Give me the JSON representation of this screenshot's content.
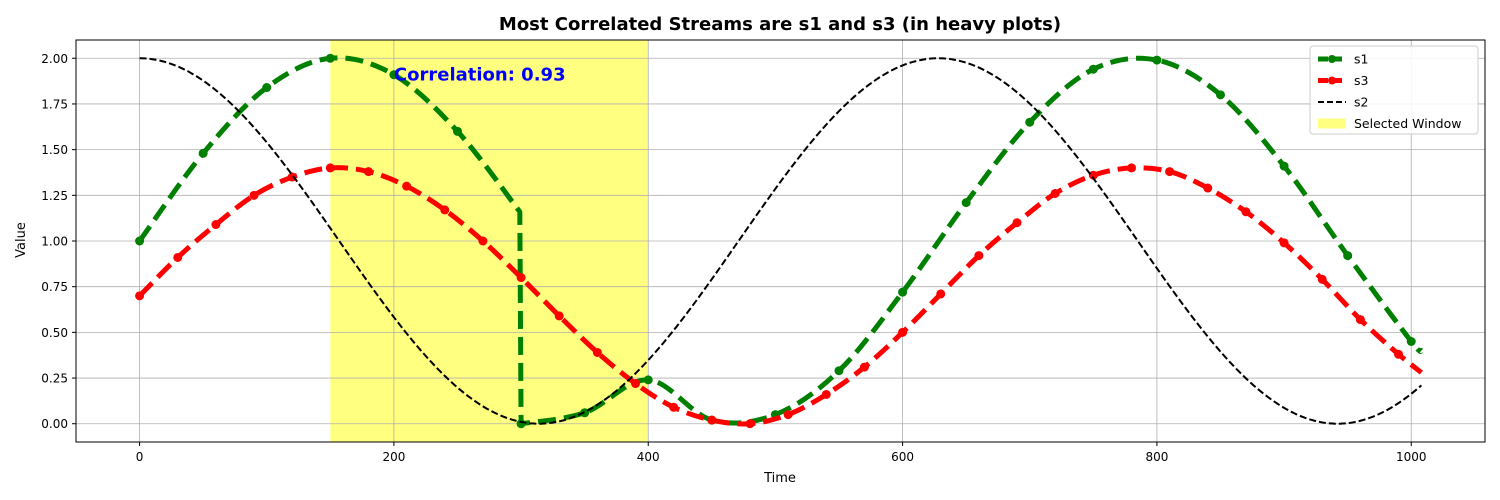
{
  "chart_data": {
    "type": "line",
    "title": "Most Correlated Streams are s1 and s3 (in heavy plots)",
    "xlabel": "Time",
    "ylabel": "Value",
    "xlim": [
      -50,
      1058
    ],
    "ylim": [
      -0.1,
      2.1
    ],
    "xticks": [
      0,
      200,
      400,
      600,
      800,
      1000
    ],
    "yticks": [
      0.0,
      0.25,
      0.5,
      0.75,
      1.0,
      1.25,
      1.5,
      1.75,
      2.0
    ],
    "ytick_labels": [
      "0.00",
      "0.25",
      "0.50",
      "0.75",
      "1.00",
      "1.25",
      "1.50",
      "1.75",
      "2.00"
    ],
    "grid": true,
    "legend_position": "top-right",
    "selected_window": {
      "label": "Selected Window",
      "x_start": 150,
      "x_end": 400,
      "color": "#ffff80"
    },
    "annotation": {
      "text": "Correlation: 0.93",
      "x": 200,
      "y": 1.91,
      "color": "#0000ff"
    },
    "series": [
      {
        "name": "s1",
        "color": "#008000",
        "style": "dashed-heavy",
        "marker": "circle",
        "x": [
          0,
          50,
          100,
          150,
          200,
          250,
          299,
          300,
          350,
          400,
          450,
          500,
          550,
          600,
          650,
          700,
          750,
          800,
          850,
          900,
          950,
          1000,
          1008
        ],
        "y": [
          1.0,
          1.48,
          1.84,
          2.0,
          1.91,
          1.6,
          1.16,
          0.0,
          0.06,
          0.24,
          0.02,
          0.05,
          0.29,
          0.72,
          1.21,
          1.65,
          1.94,
          1.99,
          1.8,
          1.41,
          0.92,
          0.45,
          0.4
        ],
        "marker_x": [
          0,
          50,
          100,
          150,
          200,
          250,
          300,
          350,
          400,
          450,
          500,
          550,
          600,
          650,
          700,
          750,
          800,
          850,
          900,
          950,
          1000
        ]
      },
      {
        "name": "s3",
        "color": "#ff0000",
        "style": "dashed-heavy",
        "marker": "circle",
        "x": [
          0,
          30,
          60,
          90,
          120,
          150,
          180,
          210,
          240,
          270,
          300,
          330,
          360,
          390,
          420,
          450,
          480,
          510,
          540,
          570,
          600,
          630,
          660,
          690,
          720,
          750,
          780,
          810,
          840,
          870,
          900,
          930,
          960,
          990,
          1008
        ],
        "y": [
          0.7,
          0.91,
          1.09,
          1.25,
          1.35,
          1.4,
          1.38,
          1.3,
          1.17,
          1.0,
          0.8,
          0.59,
          0.39,
          0.22,
          0.09,
          0.02,
          0.0,
          0.05,
          0.16,
          0.31,
          0.5,
          0.71,
          0.92,
          1.1,
          1.26,
          1.36,
          1.4,
          1.38,
          1.29,
          1.16,
          0.99,
          0.79,
          0.57,
          0.38,
          0.28
        ],
        "marker_x": [
          0,
          30,
          60,
          90,
          120,
          150,
          180,
          210,
          240,
          270,
          300,
          330,
          360,
          390,
          420,
          450,
          480,
          510,
          540,
          570,
          600,
          630,
          660,
          690,
          720,
          750,
          780,
          810,
          840,
          870,
          900,
          930,
          960,
          990
        ]
      },
      {
        "name": "s2",
        "color": "#000000",
        "style": "dashed-thin",
        "marker": "none",
        "function": "1 + cos(2*pi*x/628)",
        "x_range": [
          0,
          1008
        ]
      }
    ],
    "legend_entries": [
      "s1",
      "s3",
      "s2",
      "Selected Window"
    ]
  }
}
